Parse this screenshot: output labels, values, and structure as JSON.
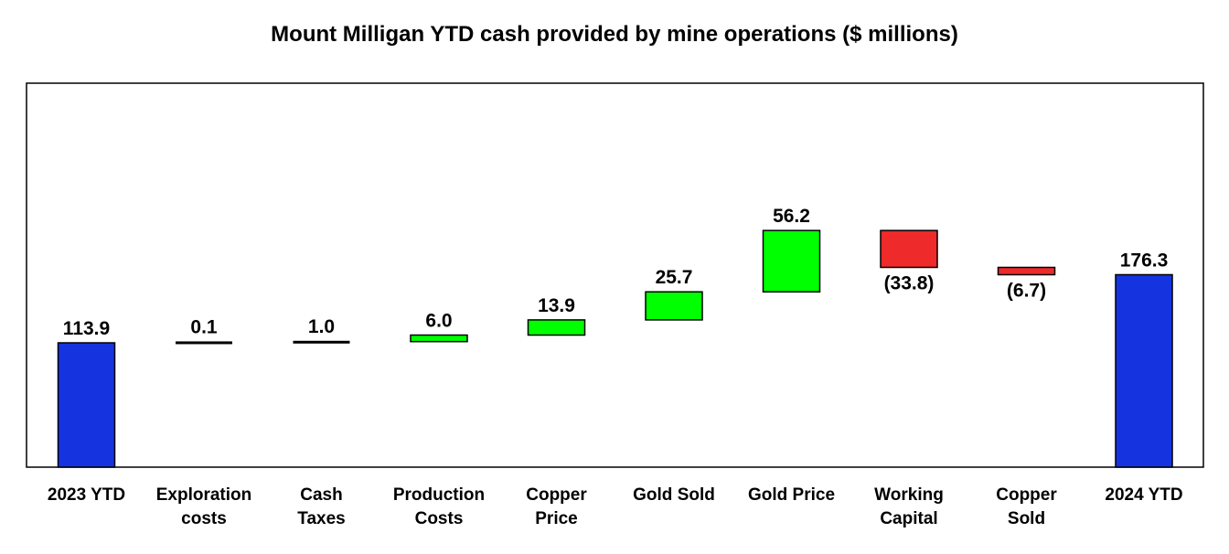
{
  "chart_data": {
    "type": "bar",
    "subtype": "waterfall",
    "title": "Mount Milligan YTD cash provided by mine operations ($ millions)",
    "xlabel": "",
    "ylabel": "",
    "ylim": [
      0,
      200
    ],
    "grid": false,
    "legend": "none",
    "colors": {
      "total": "#1534E0",
      "increase": "#00FF00",
      "decrease": "#EE2A2A",
      "neutral": "#000000"
    },
    "categories": [
      [
        "2023 YTD"
      ],
      [
        "Exploration",
        "costs"
      ],
      [
        "Cash",
        "Taxes"
      ],
      [
        "Production",
        "Costs"
      ],
      [
        "Copper",
        "Price"
      ],
      [
        "Gold Sold"
      ],
      [
        "Gold Price"
      ],
      [
        "Working",
        "Capital"
      ],
      [
        "Copper",
        "Sold"
      ],
      [
        "2024 YTD"
      ]
    ],
    "values": [
      113.9,
      0.1,
      1.0,
      6.0,
      13.9,
      25.7,
      56.2,
      -33.8,
      -6.7,
      176.3
    ],
    "value_labels": [
      "113.9",
      "0.1",
      "1.0",
      "6.0",
      "13.9",
      "25.7",
      "56.2",
      "(33.8)",
      "(6.7)",
      "176.3"
    ],
    "kinds": [
      "total",
      "step",
      "step",
      "step",
      "step",
      "step",
      "step",
      "step",
      "step",
      "total"
    ]
  }
}
